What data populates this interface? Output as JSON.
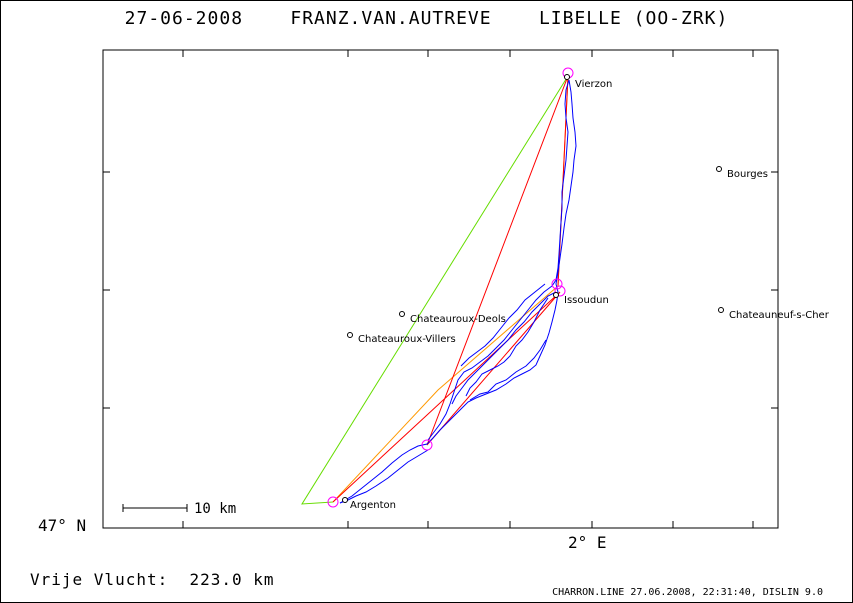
{
  "header": {
    "title": "27-06-2008    FRANZ.VAN.AUTREVE    LIBELLE (OO-ZRK)"
  },
  "axes": {
    "lat_label": "47° N",
    "lon_label": "2° E"
  },
  "scale": {
    "label": "10 km"
  },
  "footer": {
    "distance": "Vrije Vlucht:  223.0 km",
    "credit": "CHARRON.LINE 27.06.2008, 22:31:40, DISLIN 9.0"
  },
  "places": [
    {
      "name": "Vierzon"
    },
    {
      "name": "Bourges"
    },
    {
      "name": "Issoudun"
    },
    {
      "name": "Chateauneuf-s-Cher"
    },
    {
      "name": "Chateauroux-Deols"
    },
    {
      "name": "Chateauroux-Villers"
    },
    {
      "name": "Argenton"
    }
  ],
  "colors": {
    "track": "#0000ff",
    "red_route": "#ff0000",
    "green_route": "#66dd00",
    "orange_route": "#ff9900",
    "turnpoint": "#ff00ff"
  }
}
